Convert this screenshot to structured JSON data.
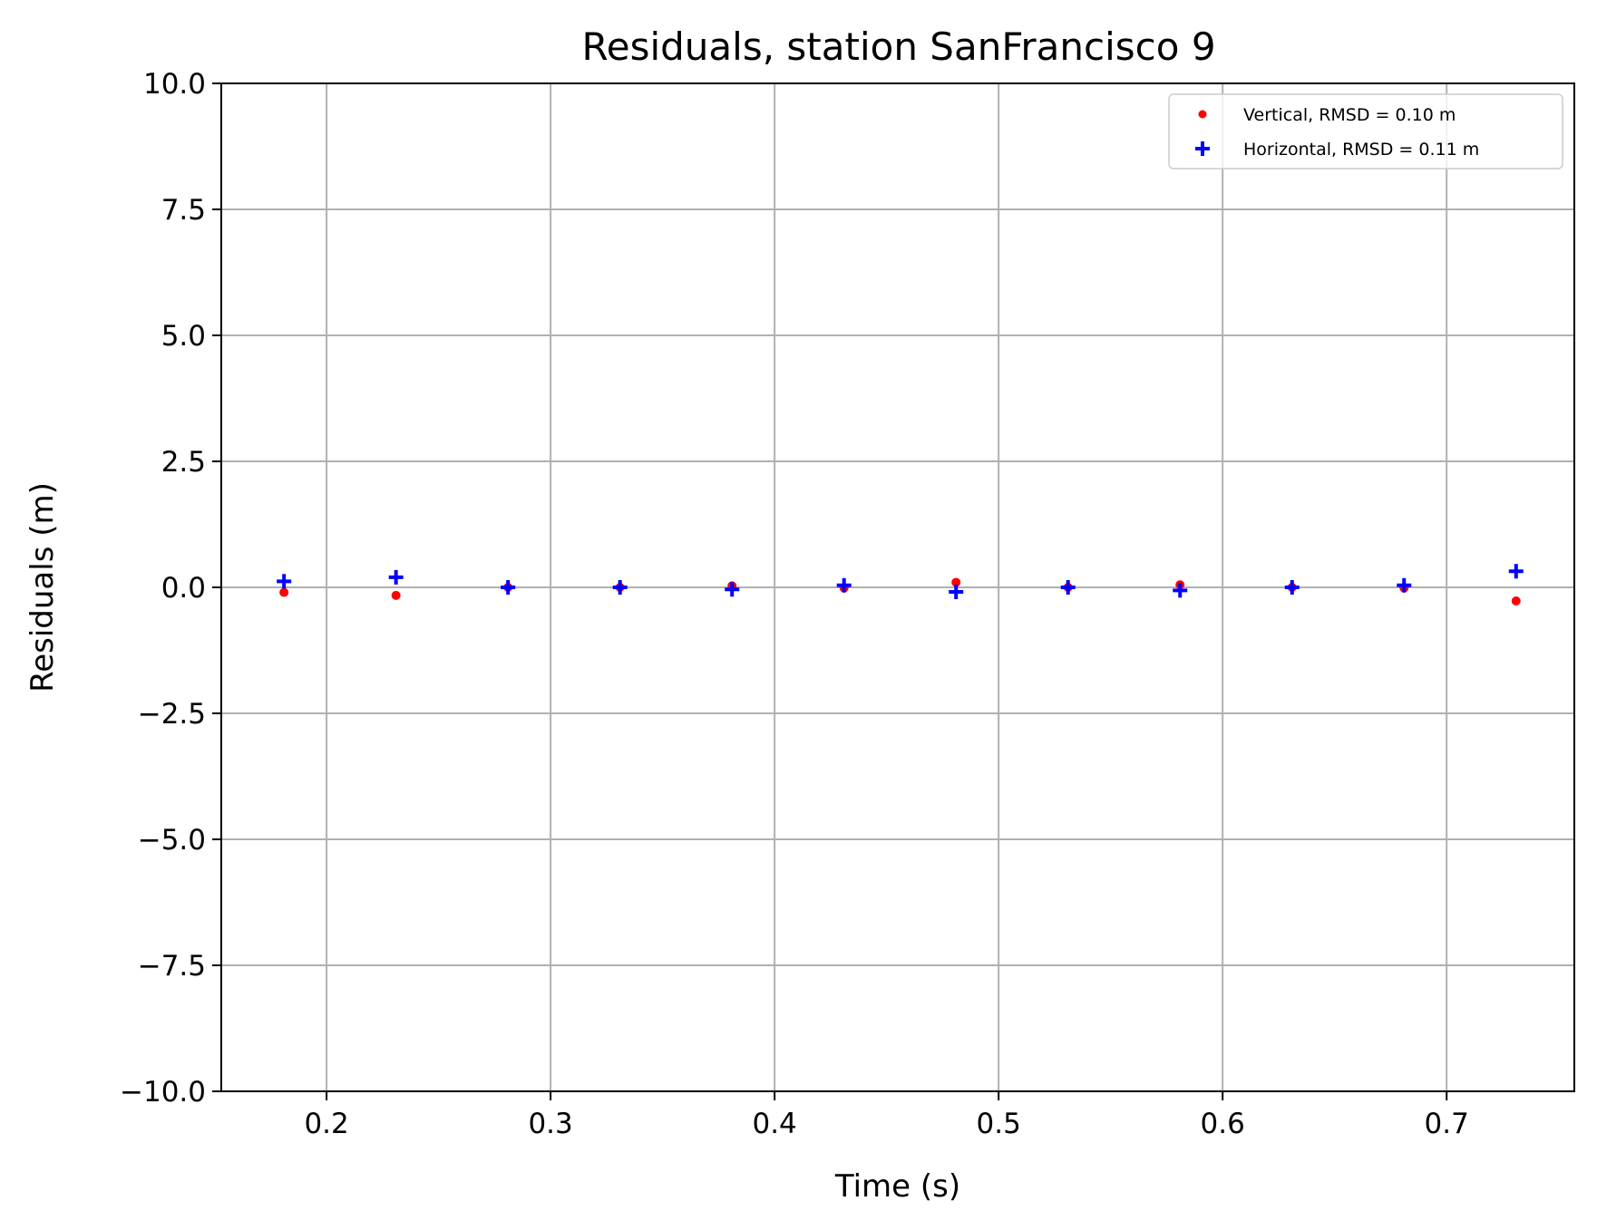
{
  "chart_data": {
    "type": "scatter",
    "title": "Residuals, station SanFrancisco 9",
    "xlabel": "Time (s)",
    "ylabel": "Residuals (m)",
    "xlim": [
      0.153,
      0.757
    ],
    "ylim": [
      -10.0,
      10.0
    ],
    "xticks": [
      0.2,
      0.3,
      0.4,
      0.5,
      0.6,
      0.7
    ],
    "xtick_labels": [
      "0.2",
      "0.3",
      "0.4",
      "0.5",
      "0.6",
      "0.7"
    ],
    "yticks": [
      10.0,
      7.5,
      5.0,
      2.5,
      0.0,
      -2.5,
      -5.0,
      -7.5,
      -10.0
    ],
    "ytick_labels": [
      "10.0",
      "7.5",
      "5.0",
      "2.5",
      "0.0",
      "−2.5",
      "−5.0",
      "−7.5",
      "−10.0"
    ],
    "grid": true,
    "legend_position": "top-right",
    "series": [
      {
        "name": "Vertical, RMSD = 0.10 m",
        "marker": "dot",
        "color": "#ff0000",
        "x": [
          0.181,
          0.231,
          0.281,
          0.331,
          0.381,
          0.431,
          0.481,
          0.531,
          0.581,
          0.631,
          0.681,
          0.731
        ],
        "y": [
          -0.1,
          -0.16,
          0.0,
          0.0,
          0.03,
          -0.01,
          0.1,
          0.0,
          0.05,
          0.0,
          -0.01,
          -0.27
        ]
      },
      {
        "name": "Horizontal, RMSD = 0.11 m",
        "marker": "plus",
        "color": "#0000ff",
        "x": [
          0.181,
          0.231,
          0.281,
          0.331,
          0.381,
          0.431,
          0.481,
          0.531,
          0.581,
          0.631,
          0.681,
          0.731
        ],
        "y": [
          0.12,
          0.2,
          0.0,
          0.0,
          -0.04,
          0.04,
          -0.09,
          0.0,
          -0.06,
          0.0,
          0.04,
          0.32
        ]
      }
    ]
  }
}
